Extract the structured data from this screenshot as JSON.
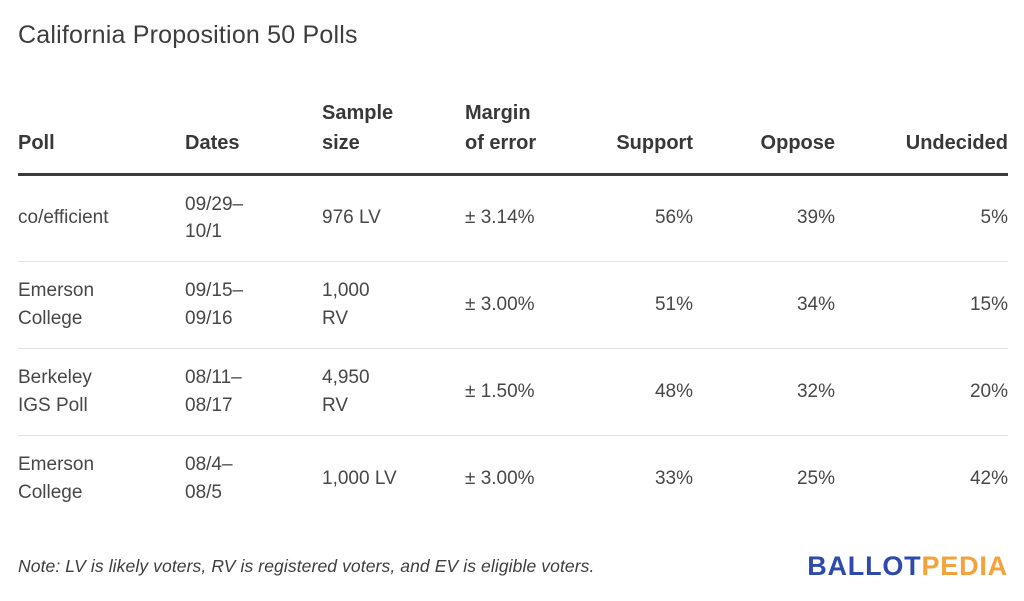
{
  "title": "California Proposition 50 Polls",
  "chart_data": {
    "type": "table",
    "title": "California Proposition 50 Polls",
    "columns": [
      "Poll",
      "Dates",
      "Sample size",
      "Margin of error",
      "Support",
      "Oppose",
      "Undecided"
    ],
    "rows": [
      [
        "co/efficient",
        "09/29–10/1",
        "976 LV",
        "± 3.14%",
        56,
        39,
        5
      ],
      [
        "Emerson College",
        "09/15–09/16",
        "1,000 RV",
        "± 3.00%",
        51,
        34,
        15
      ],
      [
        "Berkeley IGS Poll",
        "08/11–08/17",
        "4,950 RV",
        "± 1.50%",
        48,
        32,
        20
      ],
      [
        "Emerson College",
        "08/4–08/5",
        "1,000 LV",
        "± 3.00%",
        33,
        25,
        42
      ]
    ],
    "value_unit": "percent"
  },
  "table": {
    "headers": {
      "poll": "Poll",
      "dates": "Dates",
      "sample_size": "Sample\nsize",
      "margin_of_error": "Margin\nof error",
      "support": "Support",
      "oppose": "Oppose",
      "undecided": "Undecided"
    },
    "rows": [
      {
        "poll": "co/efficient",
        "dates": "09/29–\n10/1",
        "sample_size": "976 LV",
        "margin_of_error": "± 3.14%",
        "support": "56%",
        "oppose": "39%",
        "undecided": "5%"
      },
      {
        "poll": "Emerson\nCollege",
        "dates": "09/15–\n09/16",
        "sample_size": "1,000\nRV",
        "margin_of_error": "± 3.00%",
        "support": "51%",
        "oppose": "34%",
        "undecided": "15%"
      },
      {
        "poll": "Berkeley\nIGS Poll",
        "dates": "08/11–\n08/17",
        "sample_size": "4,950\nRV",
        "margin_of_error": "± 1.50%",
        "support": "48%",
        "oppose": "32%",
        "undecided": "20%"
      },
      {
        "poll": "Emerson\nCollege",
        "dates": "08/4–\n08/5",
        "sample_size": "1,000 LV",
        "margin_of_error": "± 3.00%",
        "support": "33%",
        "oppose": "25%",
        "undecided": "42%"
      }
    ]
  },
  "footer": {
    "note": "Note: LV is likely voters, RV is registered voters, and EV is eligible voters.",
    "logo": {
      "part1": "BALLOT",
      "part2": "PEDIA",
      "color1": "#2e4aad",
      "color2": "#f5a23c"
    }
  }
}
